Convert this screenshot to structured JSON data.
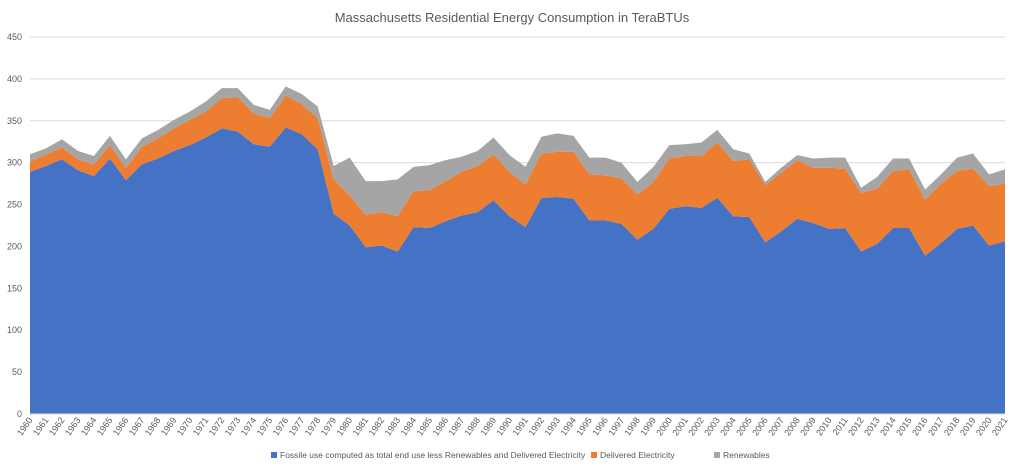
{
  "chart_data": {
    "type": "area",
    "stacked": true,
    "title": "Massachusetts Residential Energy Consumption in TeraBTUs",
    "xlabel": "",
    "ylabel": "",
    "ylim": [
      0,
      450
    ],
    "yticks": [
      0,
      50,
      100,
      150,
      200,
      250,
      300,
      350,
      400,
      450
    ],
    "grid": true,
    "legend_position": "bottom",
    "x": [
      "1960",
      "1961",
      "1962",
      "1963",
      "1964",
      "1965",
      "1966",
      "1967",
      "1968",
      "1969",
      "1970",
      "1971",
      "1972",
      "1973",
      "1974",
      "1975",
      "1976",
      "1977",
      "1978",
      "1979",
      "1980",
      "1981",
      "1982",
      "1983",
      "1984",
      "1985",
      "1986",
      "1987",
      "1988",
      "1989",
      "1990",
      "1991",
      "1992",
      "1993",
      "1994",
      "1995",
      "1996",
      "1997",
      "1998",
      "1999",
      "2000",
      "2001",
      "2002",
      "2003",
      "2004",
      "2005",
      "2006",
      "2007",
      "2008",
      "2009",
      "2010",
      "2011",
      "2012",
      "2013",
      "2014",
      "2015",
      "2016",
      "2017",
      "2018",
      "2019",
      "2020",
      "2021"
    ],
    "series": [
      {
        "name": "Fossile use computed as total end use less Renewables and Delivered Electricity",
        "color": "#4472c4",
        "values": [
          289,
          296,
          304,
          291,
          284,
          305,
          279,
          298,
          305,
          314,
          321,
          330,
          341,
          337,
          322,
          319,
          342,
          334,
          316,
          239,
          225,
          199,
          201,
          194,
          223,
          222,
          230,
          237,
          241,
          255,
          236,
          223,
          258,
          259,
          257,
          231,
          231,
          227,
          208,
          221,
          245,
          248,
          246,
          258,
          236,
          235,
          205,
          218,
          233,
          228,
          221,
          222,
          194,
          203,
          222,
          222,
          189,
          204,
          221,
          225,
          201,
          206
        ]
      },
      {
        "name": "Delivered Electricity",
        "color": "#ed7d31",
        "values": [
          12,
          14,
          14,
          13,
          14,
          16,
          15,
          21,
          24,
          27,
          30,
          31,
          36,
          41,
          37,
          34,
          38,
          36,
          37,
          41,
          36,
          39,
          40,
          42,
          43,
          45,
          48,
          52,
          55,
          55,
          53,
          51,
          53,
          54,
          56,
          55,
          54,
          54,
          54,
          56,
          60,
          60,
          62,
          66,
          66,
          69,
          68,
          70,
          70,
          66,
          73,
          71,
          70,
          66,
          68,
          70,
          67,
          71,
          69,
          68,
          71,
          69
        ]
      },
      {
        "name": "Renewables",
        "color": "#a5a5a5",
        "values": [
          9,
          7,
          10,
          10,
          10,
          11,
          10,
          10,
          10,
          10,
          10,
          12,
          12,
          11,
          10,
          10,
          11,
          12,
          14,
          16,
          45,
          40,
          37,
          44,
          29,
          30,
          25,
          18,
          18,
          20,
          20,
          21,
          20,
          22,
          19,
          20,
          21,
          19,
          15,
          18,
          16,
          14,
          16,
          15,
          14,
          7,
          4,
          6,
          6,
          11,
          12,
          13,
          6,
          14,
          15,
          13,
          12,
          11,
          16,
          18,
          14,
          17
        ]
      }
    ]
  }
}
